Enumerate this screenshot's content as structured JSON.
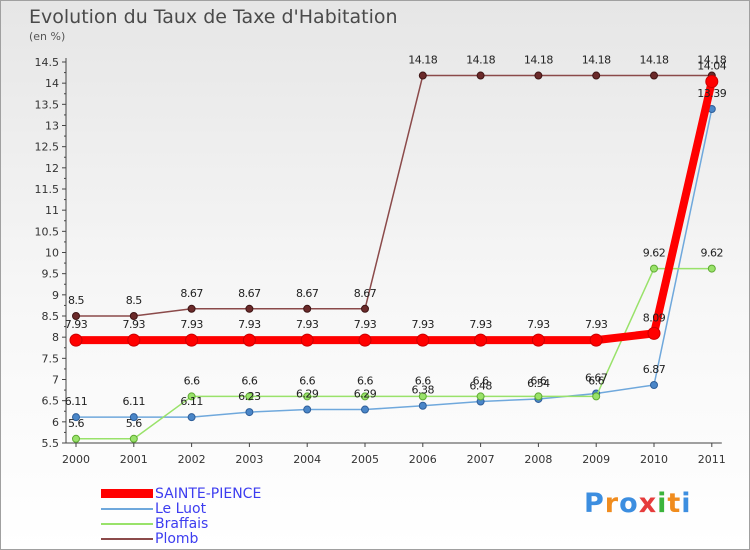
{
  "chart_data": {
    "type": "line",
    "title": "Evolution du Taux de Taxe d'Habitation",
    "subtitle": "(en %)",
    "categories": [
      "2000",
      "2001",
      "2002",
      "2003",
      "2004",
      "2005",
      "2006",
      "2007",
      "2008",
      "2009",
      "2010",
      "2011"
    ],
    "ylim": [
      5.5,
      14.5
    ],
    "yticks": [
      "5.5",
      "6",
      "6.5",
      "7",
      "7.5",
      "8",
      "8.5",
      "9",
      "9.5",
      "10",
      "10.5",
      "11",
      "11.5",
      "12",
      "12.5",
      "13",
      "13.5",
      "14",
      "14.5"
    ],
    "grid": false,
    "legend_position": "bottom-left",
    "series": [
      {
        "name": "SAINTE-PIENCE",
        "color": "#ff0000",
        "values": [
          7.93,
          7.93,
          7.93,
          7.93,
          7.93,
          7.93,
          7.93,
          7.93,
          7.93,
          7.93,
          8.09,
          14.04
        ],
        "labels": [
          "7.93",
          "7.93",
          "7.93",
          "7.93",
          "7.93",
          "7.93",
          "7.93",
          "7.93",
          "7.93",
          "7.93",
          "8.09",
          "14.04"
        ]
      },
      {
        "name": "Le Luot",
        "color": "#6fa8dc",
        "values": [
          6.11,
          6.11,
          6.11,
          6.23,
          6.29,
          6.29,
          6.38,
          6.48,
          6.54,
          6.67,
          6.87,
          13.39
        ],
        "labels": [
          "6.11",
          "6.11",
          "6.11",
          "6.23",
          "6.29",
          "6.29",
          "6.38",
          "6.48",
          "6.54",
          "6.67",
          "6.87",
          "13.39"
        ]
      },
      {
        "name": "Braffais",
        "color": "#99e26a",
        "values": [
          5.6,
          5.6,
          6.6,
          6.6,
          6.6,
          6.6,
          6.6,
          6.6,
          6.6,
          6.6,
          9.62,
          9.62
        ],
        "labels": [
          "5.6",
          "5.6",
          "6.6",
          "6.6",
          "6.6",
          "6.6",
          "6.6",
          "6.6",
          "6.6",
          "6.6",
          "9.62",
          "9.62"
        ]
      },
      {
        "name": "Plomb",
        "color": "#8b4a4a",
        "values": [
          8.5,
          8.5,
          8.67,
          8.67,
          8.67,
          8.67,
          14.18,
          14.18,
          14.18,
          14.18,
          14.18,
          14.18
        ],
        "labels": [
          "8.5",
          "8.5",
          "8.67",
          "8.67",
          "8.67",
          "8.67",
          "14.18",
          "14.18",
          "14.18",
          "14.18",
          "14.18",
          "14.18"
        ]
      }
    ]
  },
  "logo": {
    "letters": [
      "P",
      "r",
      "o",
      "x",
      "i",
      "t",
      "i"
    ],
    "colors": [
      "#3c8ee0",
      "#f08c1e",
      "#3c8ee0",
      "#e63c3c",
      "#3cb43c",
      "#f08c1e",
      "#3c8ee0"
    ]
  }
}
